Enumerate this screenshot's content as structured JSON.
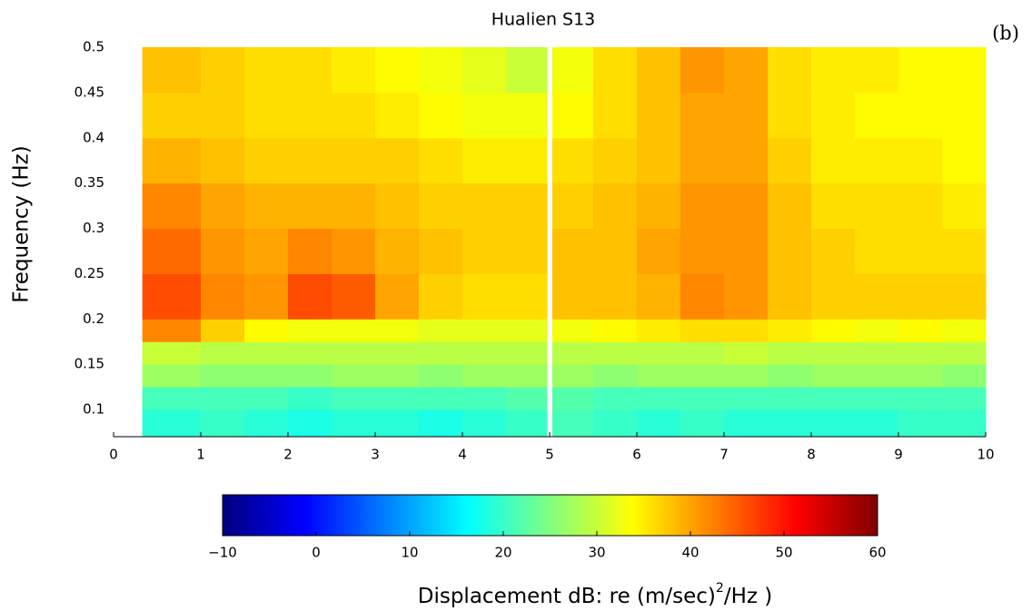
{
  "chart_data": {
    "type": "heatmap",
    "title": "Hualien S13",
    "panel_label": "(b)",
    "ylabel": "Frequency (Hz)",
    "colorbar_label": [
      "Displacement dB: re (m/sec)",
      "2",
      "/Hz )"
    ],
    "colormap": "jet",
    "x_edges": [
      0.33,
      1,
      1.5,
      2,
      2.5,
      3,
      3.5,
      4,
      4.5,
      4.97,
      5.03,
      5.5,
      6,
      6.5,
      7,
      7.5,
      8,
      8.5,
      9,
      9.5,
      10
    ],
    "y_edges": [
      0.07,
      0.1,
      0.125,
      0.15,
      0.175,
      0.2,
      0.25,
      0.3,
      0.35,
      0.4,
      0.45,
      0.5
    ],
    "z": [
      [
        19,
        20,
        19,
        18,
        19,
        19,
        18,
        19,
        20,
        null,
        21,
        20,
        19,
        20,
        19,
        19,
        19,
        19,
        20,
        20
      ],
      [
        21,
        21,
        21,
        20,
        21,
        21,
        21,
        21,
        22,
        null,
        22,
        21,
        21,
        21,
        21,
        21,
        21,
        21,
        21,
        21
      ],
      [
        27,
        26,
        26,
        26,
        27,
        27,
        26,
        27,
        27,
        null,
        27,
        26,
        27,
        27,
        27,
        26,
        27,
        27,
        27,
        26
      ],
      [
        30,
        29,
        29,
        29,
        29,
        29,
        29,
        29,
        29,
        null,
        29,
        29,
        29,
        29,
        30,
        29,
        29,
        29,
        29,
        29
      ],
      [
        42,
        37,
        34,
        33,
        33,
        33,
        32,
        32,
        32,
        null,
        33,
        34,
        35,
        36,
        36,
        35,
        34,
        33,
        34,
        33
      ],
      [
        46,
        42,
        41,
        46,
        45,
        40,
        37,
        36,
        36,
        null,
        38,
        38,
        39,
        42,
        41,
        38,
        37,
        37,
        37,
        37
      ],
      [
        44,
        41,
        40,
        42,
        41,
        39,
        38,
        37,
        37,
        null,
        38,
        38,
        40,
        41,
        41,
        38,
        37,
        36,
        36,
        36
      ],
      [
        42,
        40,
        39,
        39,
        39,
        38,
        37,
        37,
        37,
        null,
        37,
        38,
        39,
        41,
        41,
        38,
        36,
        36,
        36,
        35
      ],
      [
        39,
        38,
        37,
        37,
        37,
        37,
        36,
        35,
        35,
        null,
        36,
        37,
        38,
        40,
        40,
        37,
        35,
        35,
        35,
        34
      ],
      [
        37,
        37,
        36,
        36,
        36,
        35,
        34,
        33,
        33,
        null,
        34,
        36,
        38,
        40,
        40,
        36,
        35,
        34,
        34,
        34
      ],
      [
        38,
        37,
        36,
        36,
        35,
        34,
        33,
        32,
        30,
        null,
        33,
        36,
        38,
        41,
        40,
        36,
        35,
        35,
        34,
        34
      ]
    ],
    "xlim": [
      0,
      10
    ],
    "xticks": [
      0,
      1,
      2,
      3,
      4,
      5,
      6,
      7,
      8,
      9,
      10
    ],
    "ylim": [
      0.07,
      0.5
    ],
    "yticks": [
      0.1,
      0.15,
      0.2,
      0.25,
      0.3,
      0.35,
      0.4,
      0.45,
      0.5
    ],
    "clim": [
      -10,
      60
    ],
    "cticks": [
      {
        "value": -10,
        "label": "−10"
      },
      0,
      10,
      20,
      30,
      40,
      50,
      60
    ]
  }
}
